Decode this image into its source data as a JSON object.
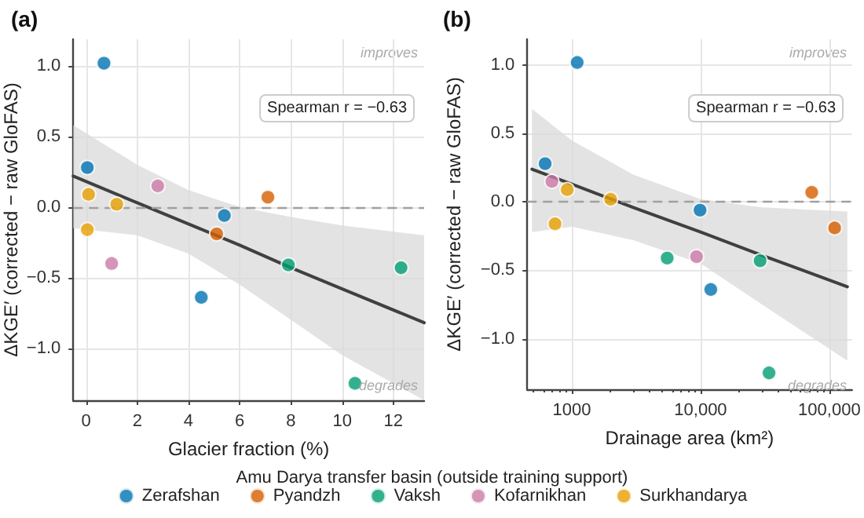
{
  "chart_data": [
    {
      "type": "scatter",
      "title": "(a)",
      "xlabel": "Glacier fraction (%)",
      "ylabel": "ΔKGE′ (corrected − raw GloFAS)",
      "legend_title": "Amu Darya transfer basin (outside training support)",
      "legend": "bottom",
      "grid": true,
      "marker": "circle",
      "xlim": [
        -0.5,
        13.2
      ],
      "xticks": [
        0,
        2,
        4,
        6,
        8,
        10,
        12
      ],
      "ylim": [
        -1.37,
        1.19
      ],
      "yticks": [
        {
          "value": -1,
          "label": "−1.0"
        },
        {
          "value": -0.5,
          "label": "−0.5"
        },
        {
          "value": 0,
          "label": "0.0"
        },
        {
          "value": 0.5,
          "label": "0.5"
        },
        {
          "value": 1,
          "label": "1.0"
        }
      ],
      "annotations": [
        "improves",
        "degrades",
        "Spearman r = −0.63"
      ],
      "ref_lines": [
        {
          "axis": "y",
          "value": 0,
          "color": "#a0a0a0",
          "line_style": "dashed"
        }
      ],
      "series": [
        {
          "name": "Zerafshan",
          "color": "#0072b2",
          "x": [
            0.7,
            0.05,
            4.5,
            5.4
          ],
          "values": [
            1.02,
            0.28,
            -0.64,
            -0.06
          ]
        },
        {
          "name": "Pyandzh",
          "color": "#d55e00",
          "x": [
            7.1,
            5.1
          ],
          "values": [
            0.07,
            -0.19
          ]
        },
        {
          "name": "Vaksh",
          "color": "#009e73",
          "x": [
            7.9,
            12.3,
            10.5
          ],
          "values": [
            -0.41,
            -0.43,
            -1.25
          ]
        },
        {
          "name": "Kofarnikhan",
          "color": "#cc79a7",
          "x": [
            2.8,
            1.0
          ],
          "values": [
            0.15,
            -0.4
          ]
        },
        {
          "name": "Surkhandarya",
          "color": "#e69f00",
          "x": [
            0.1,
            0.05,
            1.2
          ],
          "values": [
            0.09,
            -0.16,
            0.02
          ]
        },
        {
          "type": "line",
          "color": "#404040",
          "marker": "none",
          "x": [
            -0.5,
            2,
            4,
            6,
            8,
            10,
            13.2
          ],
          "values": [
            0.22,
            0.03,
            -0.12,
            -0.27,
            -0.43,
            -0.58,
            -0.82
          ],
          "lower": [
            -0.15,
            -0.2,
            -0.33,
            -0.55,
            -0.8,
            -1.05,
            -1.37
          ],
          "upper": [
            0.58,
            0.3,
            0.12,
            0.0,
            -0.07,
            -0.13,
            -0.2
          ]
        }
      ]
    },
    {
      "type": "scatter",
      "title": "(b)",
      "xlabel": "Drainage area (km²)",
      "ylabel": "ΔKGE′ (corrected − raw GloFAS)",
      "grid": true,
      "marker": "circle",
      "log": "x",
      "xlim": [
        450,
        150000
      ],
      "xticks": [
        {
          "value": 1000,
          "label": "1000"
        },
        {
          "value": 10000,
          "label": "10,000"
        },
        {
          "value": 100000,
          "label": "100,000"
        }
      ],
      "ylim": [
        -1.37,
        1.19
      ],
      "yticks": [
        {
          "value": -1,
          "label": "−1.0"
        },
        {
          "value": -0.5,
          "label": "−0.5"
        },
        {
          "value": 0,
          "label": "0.0"
        },
        {
          "value": 0.5,
          "label": "0.5"
        },
        {
          "value": 1,
          "label": "1.0"
        }
      ],
      "annotations": [
        "improves",
        "degrades",
        "Spearman r = −0.63"
      ],
      "ref_lines": [
        {
          "axis": "y",
          "value": 0,
          "color": "#a0a0a0",
          "line_style": "dashed"
        }
      ],
      "series": [
        {
          "color": "#0072b2",
          "x": [
            1100,
            620,
            9900,
            12000
          ],
          "values": [
            1.02,
            0.28,
            -0.06,
            -0.64
          ]
        },
        {
          "color": "#d55e00",
          "x": [
            73000,
            110000
          ],
          "values": [
            0.07,
            -0.19
          ]
        },
        {
          "color": "#009e73",
          "x": [
            5500,
            29000,
            34000
          ],
          "values": [
            -0.41,
            -0.43,
            -1.25
          ]
        },
        {
          "color": "#cc79a7",
          "x": [
            700,
            9300
          ],
          "values": [
            0.15,
            -0.4
          ]
        },
        {
          "color": "#e69f00",
          "x": [
            920,
            740,
            2000
          ],
          "values": [
            0.09,
            -0.16,
            0.02
          ]
        },
        {
          "type": "line",
          "color": "#404040",
          "marker": "none",
          "x": [
            490,
            1000,
            3000,
            10000,
            30000,
            138000
          ],
          "values": [
            0.24,
            0.13,
            -0.04,
            -0.22,
            -0.39,
            -0.62
          ],
          "lower": [
            -0.22,
            -0.18,
            -0.28,
            -0.45,
            -0.75,
            -1.16
          ],
          "upper": [
            0.68,
            0.45,
            0.2,
            0.02,
            -0.04,
            -0.07
          ]
        }
      ]
    }
  ]
}
